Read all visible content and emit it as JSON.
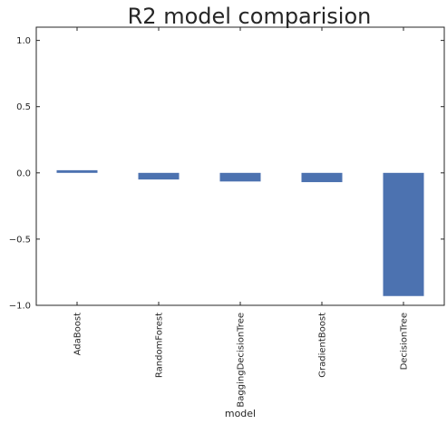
{
  "chart_data": {
    "type": "bar",
    "title": "R2 model comparision",
    "xlabel": "model",
    "ylabel": "",
    "categories": [
      "AdaBoost",
      "RandomForest",
      "BaggingDecisionTree",
      "GradientBoost",
      "DecisionTree"
    ],
    "values": [
      0.02,
      -0.05,
      -0.065,
      -0.07,
      -0.93
    ],
    "ylim": [
      -1.0,
      1.1
    ],
    "yticks": [
      1.0,
      0.5,
      0.0,
      -0.5,
      -1.0
    ],
    "ytick_labels": [
      "1.0",
      "0.5",
      "0.0",
      "−0.5",
      "−1.0"
    ],
    "grid": false,
    "legend": "none",
    "bar_color": "#4c72b0",
    "axis_color": "#262626"
  }
}
